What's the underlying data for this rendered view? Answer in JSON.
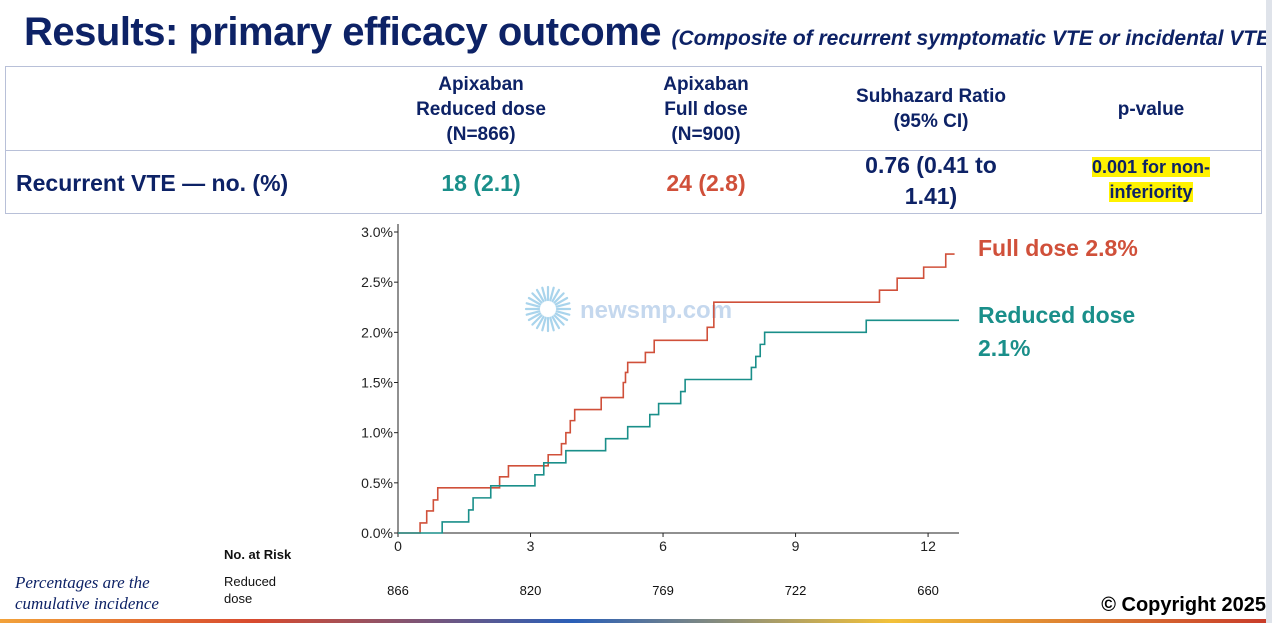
{
  "title": {
    "main": "Results: primary efficacy outcome",
    "subtitle": "(Composite of recurrent symptomatic VTE or incidental VTE)"
  },
  "table": {
    "headers": {
      "reduced": [
        "Apixaban",
        "Reduced dose",
        "(N=866)"
      ],
      "full": [
        "Apixaban",
        "Full dose",
        "(N=900)"
      ],
      "ratio": [
        "Subhazard Ratio",
        "(95% CI)"
      ],
      "pvalue": "p-value"
    },
    "row": {
      "label": "Recurrent VTE — no. (%)",
      "reduced": "18 (2.1)",
      "full": "24 (2.8)",
      "ratio": [
        "0.76 (0.41 to",
        "1.41)"
      ],
      "pvalue": [
        "0.001 for non-",
        "inferiority"
      ]
    }
  },
  "chart_data": {
    "type": "line",
    "title": "",
    "xlabel": "",
    "ylabel": "",
    "xlim": [
      0,
      12.7
    ],
    "ylim": [
      0,
      3.0
    ],
    "x_ticks": [
      0,
      3,
      6,
      9,
      12
    ],
    "y_ticks": [
      "0.0%",
      "0.5%",
      "1.0%",
      "1.5%",
      "2.0%",
      "2.5%",
      "3.0%"
    ],
    "series": [
      {
        "name": "Full dose",
        "color": "#d0503a",
        "label": "Full dose 2.8%",
        "steps": [
          [
            0,
            0
          ],
          [
            0.5,
            0.1
          ],
          [
            0.65,
            0.22
          ],
          [
            0.8,
            0.33
          ],
          [
            0.9,
            0.45
          ],
          [
            2.3,
            0.56
          ],
          [
            2.5,
            0.67
          ],
          [
            3.4,
            0.78
          ],
          [
            3.7,
            0.89
          ],
          [
            3.8,
            1.0
          ],
          [
            3.9,
            1.12
          ],
          [
            4.0,
            1.23
          ],
          [
            4.6,
            1.35
          ],
          [
            5.1,
            1.5
          ],
          [
            5.15,
            1.6
          ],
          [
            5.2,
            1.7
          ],
          [
            5.6,
            1.8
          ],
          [
            5.8,
            1.92
          ],
          [
            7.0,
            2.05
          ],
          [
            7.15,
            2.3
          ],
          [
            10.9,
            2.42
          ],
          [
            11.3,
            2.54
          ],
          [
            11.9,
            2.65
          ],
          [
            12.4,
            2.78
          ],
          [
            12.6,
            2.78
          ]
        ]
      },
      {
        "name": "Reduced dose",
        "color": "#1a8f8a",
        "label": "Reduced dose 2.1%",
        "steps": [
          [
            0,
            0
          ],
          [
            1.0,
            0.11
          ],
          [
            1.6,
            0.23
          ],
          [
            1.7,
            0.35
          ],
          [
            2.1,
            0.47
          ],
          [
            3.1,
            0.58
          ],
          [
            3.3,
            0.7
          ],
          [
            3.8,
            0.82
          ],
          [
            4.7,
            0.94
          ],
          [
            5.2,
            1.06
          ],
          [
            5.7,
            1.18
          ],
          [
            5.9,
            1.29
          ],
          [
            6.4,
            1.41
          ],
          [
            6.5,
            1.53
          ],
          [
            8.0,
            1.65
          ],
          [
            8.1,
            1.76
          ],
          [
            8.2,
            1.88
          ],
          [
            8.3,
            2.0
          ],
          [
            10.6,
            2.12
          ],
          [
            12.7,
            2.12
          ]
        ]
      }
    ],
    "watermark": "newsmp.com",
    "at_risk": {
      "heading": "No. at Risk",
      "x_positions": [
        0,
        3,
        6,
        9,
        12
      ],
      "rows": [
        {
          "label": [
            "Reduced",
            "dose"
          ],
          "values": [
            "866",
            "820",
            "769",
            "722",
            "660"
          ]
        }
      ]
    }
  },
  "footnote": [
    "Percentages are the",
    "cumulative incidence"
  ],
  "copyright": "© Copyright 2025"
}
